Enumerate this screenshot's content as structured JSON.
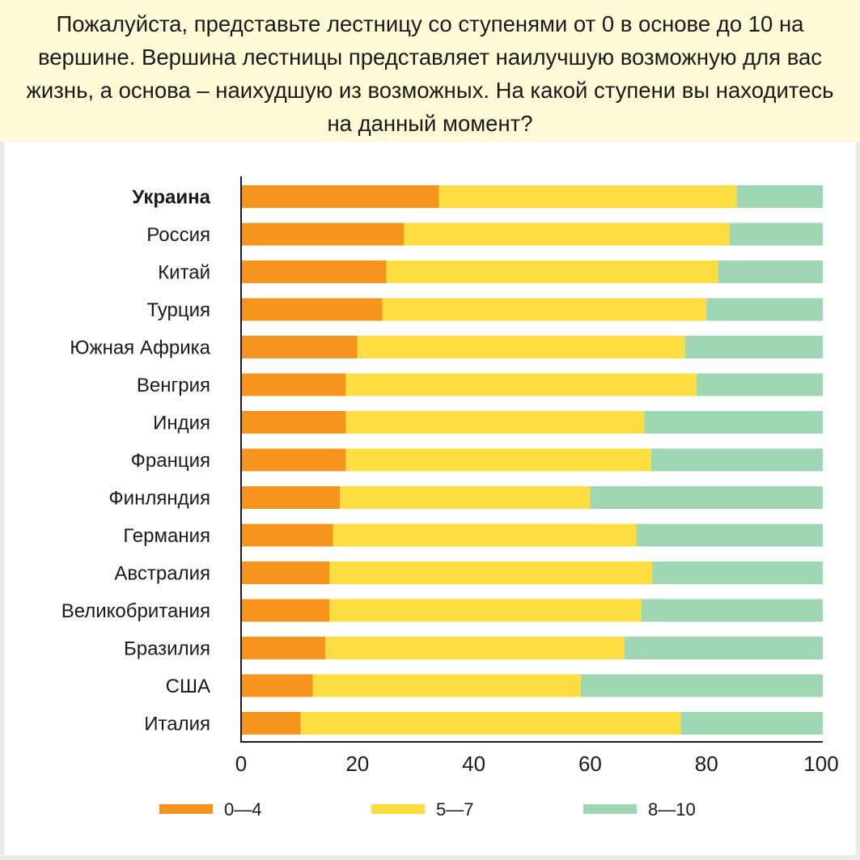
{
  "question": "Пожалуйста, представьте лестницу со ступенями от 0 в основе до 10 на вершине. Вершина лестницы представляет наилучшую возможную для вас жизнь, а основа – наихудшую из возможных. На какой ступени вы находитесь на данный момент?",
  "colors": {
    "header_bg": "#fffbd6",
    "low": "#f7941d",
    "mid": "#fddd3f",
    "high": "#9fd6b3"
  },
  "chart_data": {
    "type": "bar",
    "orientation": "horizontal",
    "stacked": true,
    "categories": [
      "Украина",
      "Россия",
      "Китай",
      "Турция",
      "Южная Африка",
      "Венгрия",
      "Индия",
      "Франция",
      "Финляндия",
      "Германия",
      "Австралия",
      "Великобритания",
      "Бразилия",
      "США",
      "Италия"
    ],
    "highlight_category": "Украина",
    "series": [
      {
        "name": "0—4",
        "color": "#f7941d",
        "values": [
          34,
          28,
          25,
          24.3,
          20,
          18,
          18,
          18,
          17,
          15.8,
          15.2,
          15.2,
          14.5,
          12.3,
          10.2
        ]
      },
      {
        "name": "5—7",
        "color": "#fddd3f",
        "values": [
          51.2,
          56,
          57,
          55.7,
          56.3,
          60.3,
          51.3,
          52.5,
          43,
          52.2,
          55.5,
          53.6,
          51.4,
          46.1,
          65.4
        ]
      },
      {
        "name": "8—10",
        "color": "#9fd6b3",
        "values": [
          14.8,
          16,
          18,
          20,
          23.7,
          21.7,
          30.7,
          29.5,
          40,
          32,
          29.3,
          31.2,
          34.1,
          41.6,
          24.4
        ]
      }
    ],
    "xlim": [
      0,
      100
    ],
    "xticks": [
      0,
      20,
      40,
      60,
      80,
      100
    ],
    "xtick_labels": [
      "0",
      "20",
      "40",
      "60",
      "80",
      "100"
    ],
    "legend": [
      "0—4",
      "5—7",
      "8—10"
    ],
    "legend_position": "bottom",
    "grid": false
  }
}
